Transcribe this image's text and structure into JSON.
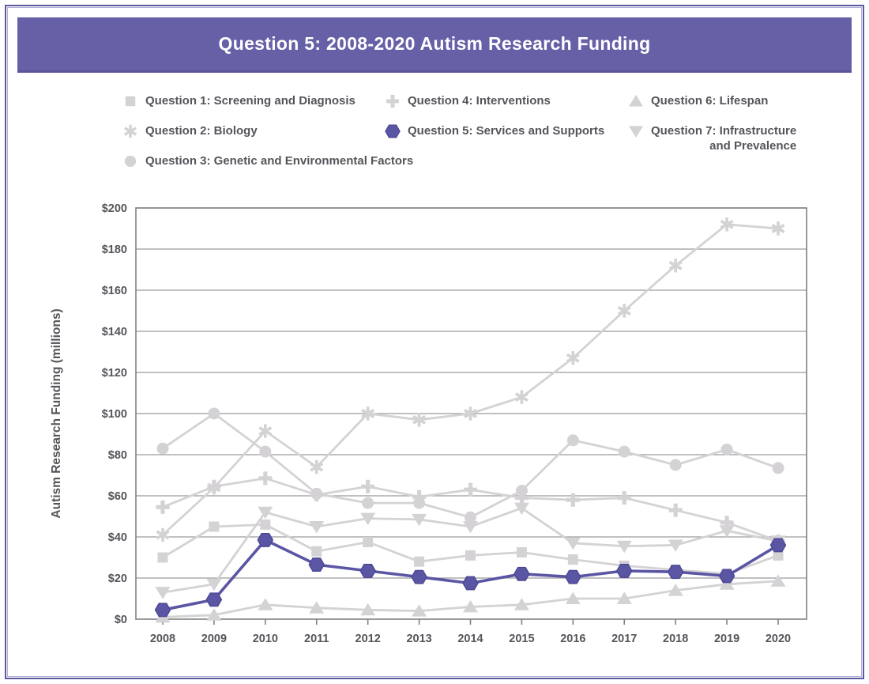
{
  "banner": {
    "title": "Question 5: 2008-2020 Autism Research Funding"
  },
  "colors": {
    "banner": "#6660a7",
    "highlight": "#5b56a4",
    "highlight_edge": "#4c4795",
    "gray_series": "#d4d2d4",
    "grid": "#9b9b9d",
    "axis": "#7f8084",
    "text": "#54555a"
  },
  "legend": {
    "columns": [
      [
        {
          "label": "Question 1: Screening and Diagnosis",
          "marker": "square",
          "highlighted": false
        },
        {
          "label": "Question 2: Biology",
          "marker": "asterisk",
          "highlighted": false
        },
        {
          "label": "Question 3: Genetic and Environmental Factors",
          "marker": "circle",
          "highlighted": false
        }
      ],
      [
        {
          "label": "Question 4: Interventions",
          "marker": "plus",
          "highlighted": false
        },
        {
          "label": "Question 5: Services and Supports",
          "marker": "hexagon",
          "highlighted": true
        }
      ],
      [
        {
          "label": "Question 6: Lifespan",
          "marker": "triangle-up",
          "highlighted": false
        },
        {
          "label": "Question 7: Infrastructure\nand Prevalence",
          "marker": "triangle-down",
          "highlighted": false
        }
      ]
    ]
  },
  "chart_data": {
    "type": "line",
    "title": "Question 5: 2008-2020 Autism Research Funding",
    "ylabel": "Autism Research Funding (millions)",
    "xlabel": "",
    "x": [
      2008,
      2009,
      2010,
      2011,
      2012,
      2013,
      2014,
      2015,
      2016,
      2017,
      2018,
      2019,
      2020
    ],
    "ylim": [
      0,
      200
    ],
    "ytick_step": 20,
    "ytick_prefix": "$",
    "grid": true,
    "legend_position": "top",
    "series": [
      {
        "name": "Question 1: Screening and Diagnosis",
        "marker": "square",
        "values": [
          30,
          45,
          46,
          33,
          37.5,
          28,
          31,
          32.5,
          29,
          26,
          24,
          22,
          31
        ],
        "highlighted": false
      },
      {
        "name": "Question 2: Biology",
        "marker": "asterisk",
        "values": [
          41,
          64,
          91.5,
          74,
          100,
          97,
          100,
          108,
          127,
          150,
          172,
          192,
          190
        ],
        "highlighted": false
      },
      {
        "name": "Question 3: Genetic and Environmental Factors",
        "marker": "circle",
        "values": [
          83,
          100,
          81.5,
          61,
          56.5,
          56.5,
          49.5,
          62.5,
          87,
          81.5,
          75,
          82.5,
          73.5
        ],
        "highlighted": false
      },
      {
        "name": "Question 4: Interventions",
        "marker": "plus",
        "values": [
          54.5,
          64.5,
          68.5,
          60.5,
          64.5,
          59.5,
          63,
          59,
          58,
          59,
          53,
          47,
          38
        ],
        "highlighted": false
      },
      {
        "name": "Question 5: Services and Supports",
        "marker": "hexagon",
        "values": [
          4.5,
          9.5,
          38.5,
          26.5,
          23.5,
          20.5,
          17.5,
          22,
          20.5,
          23.5,
          23,
          21,
          36
        ],
        "highlighted": true
      },
      {
        "name": "Question 6: Lifespan",
        "marker": "triangle-up",
        "values": [
          1,
          2,
          7,
          5.5,
          4.5,
          4,
          6,
          7,
          10,
          10,
          14,
          17,
          18.5
        ],
        "highlighted": false
      },
      {
        "name": "Question 7: Infrastructure and Prevalence",
        "marker": "triangle-down",
        "values": [
          13,
          17,
          52,
          45,
          49,
          48.5,
          45,
          54,
          37,
          35.5,
          36,
          43,
          38
        ],
        "highlighted": false
      }
    ]
  }
}
